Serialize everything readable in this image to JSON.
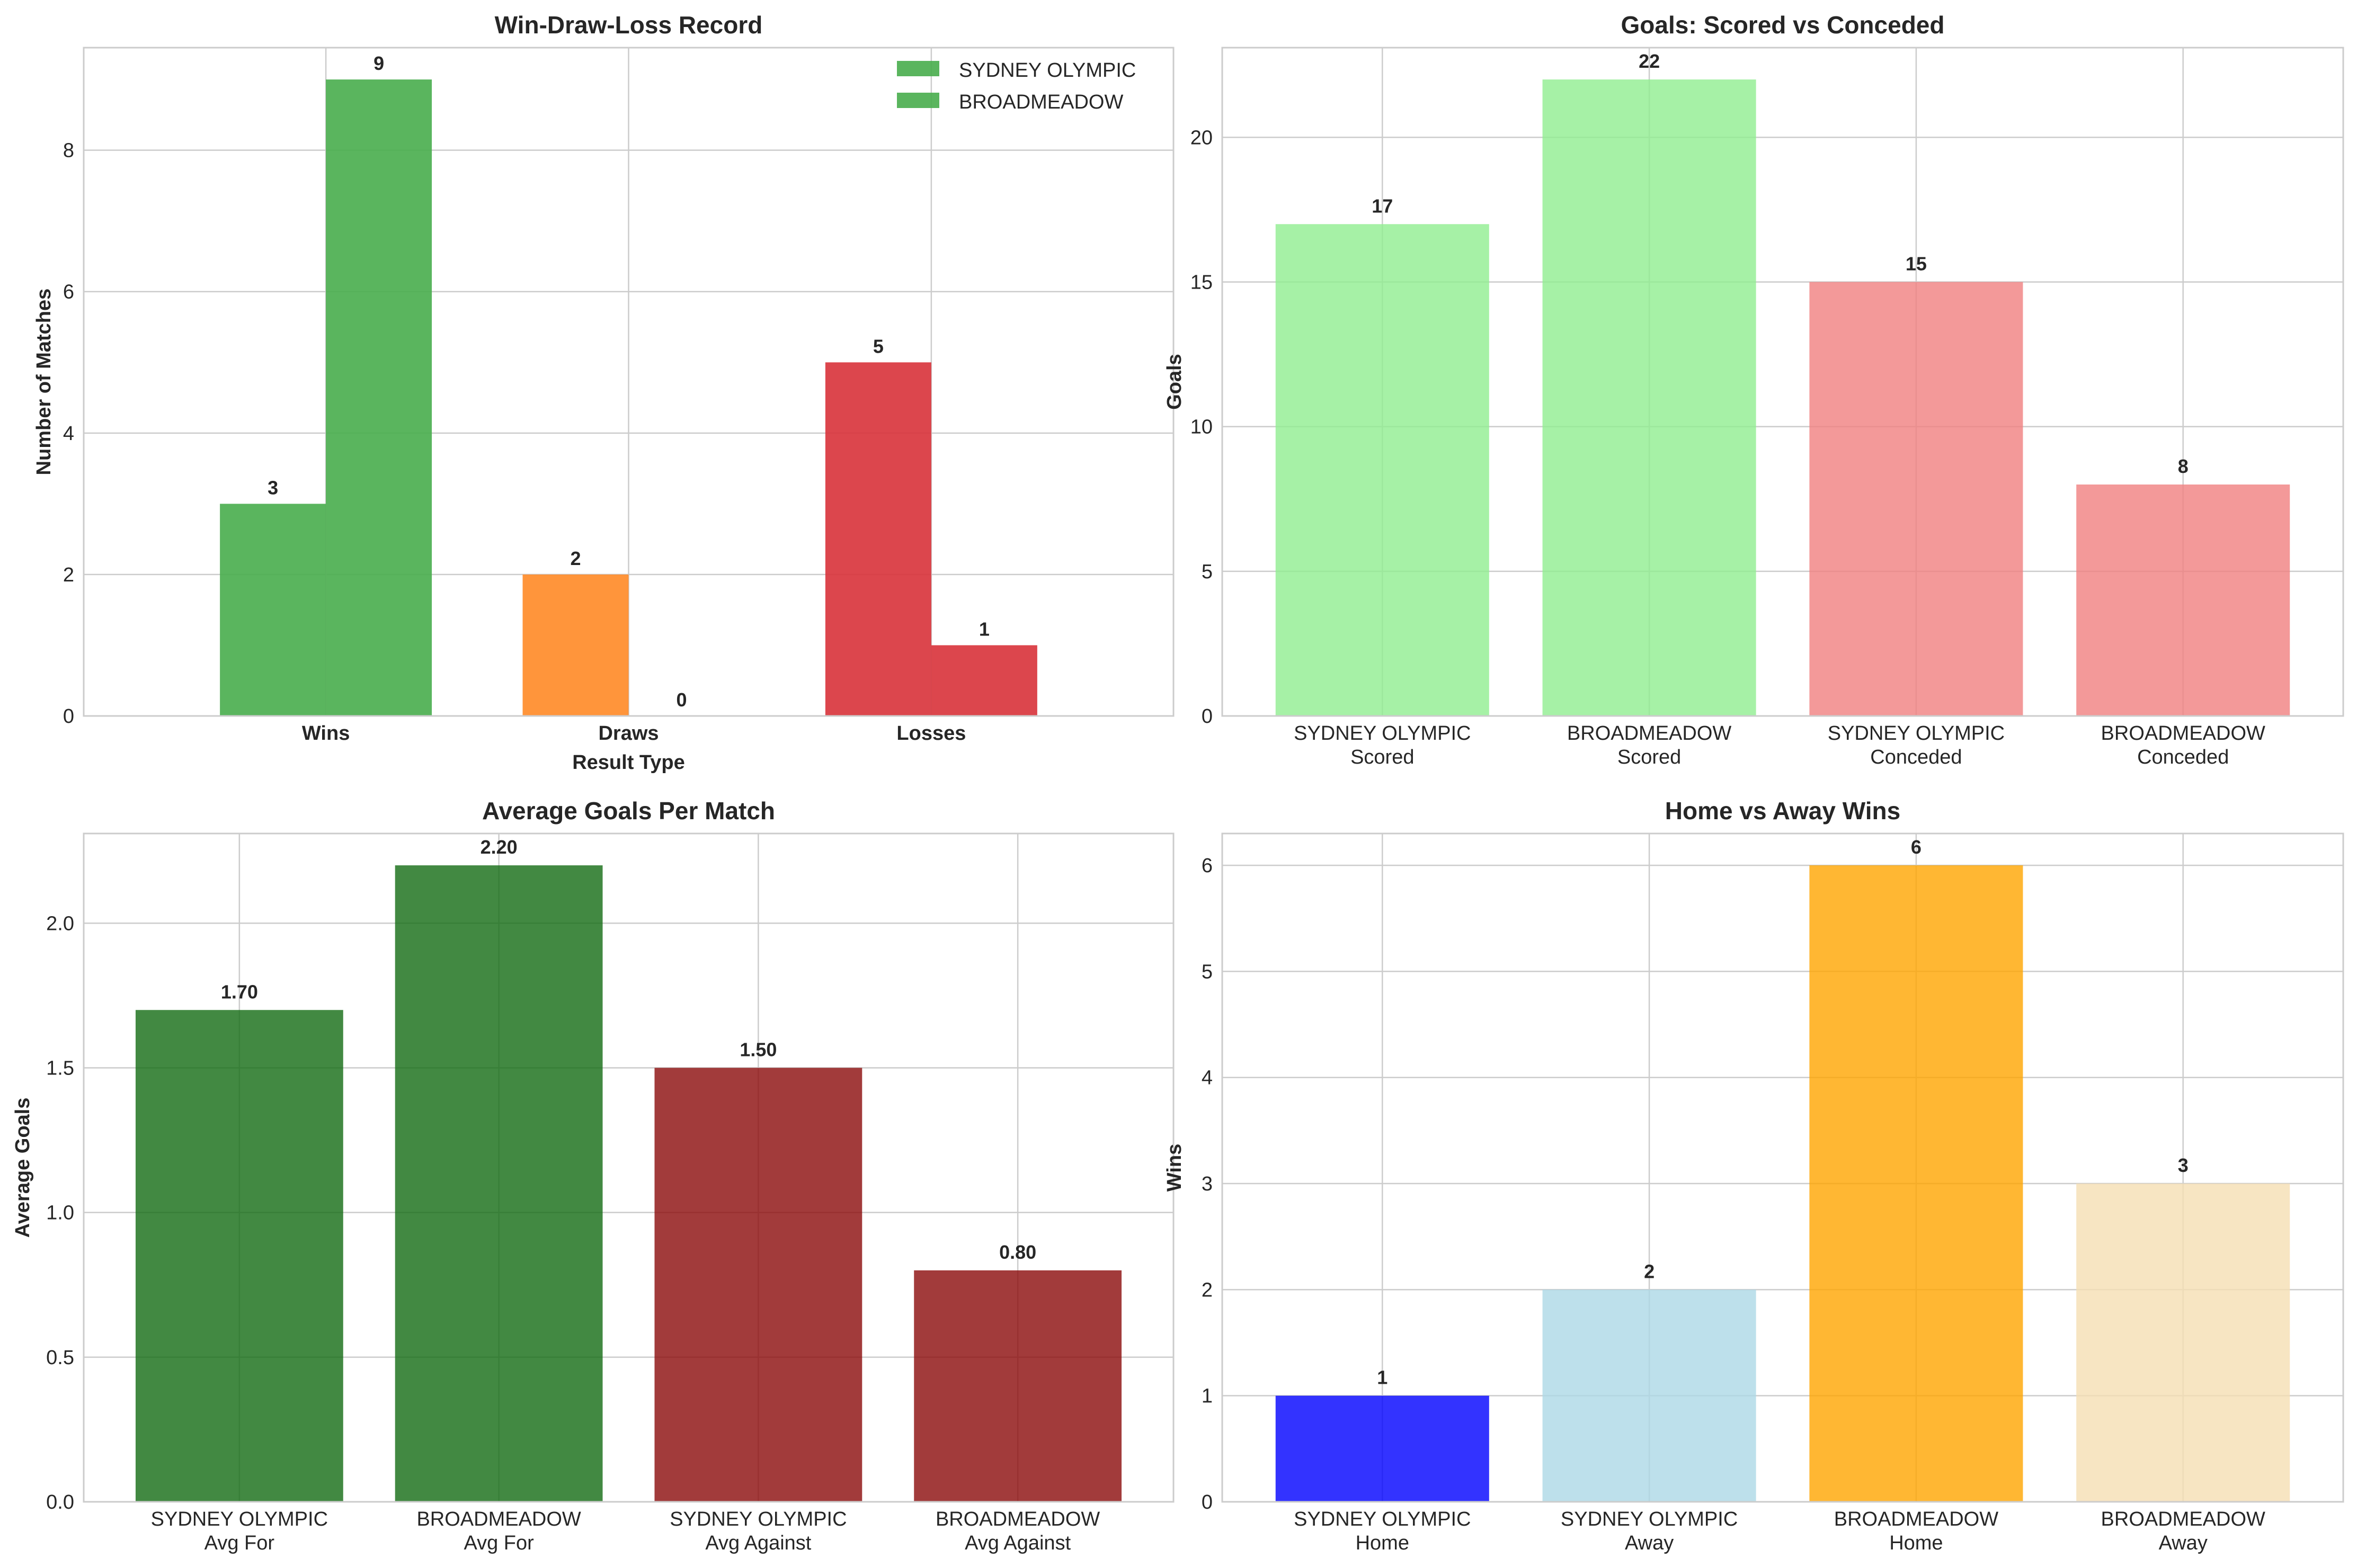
{
  "chart_data": [
    {
      "type": "bar",
      "title": "Win-Draw-Loss Record",
      "xlabel": "Result Type",
      "ylabel": "Number of Matches",
      "categories": [
        "Wins",
        "Draws",
        "Losses"
      ],
      "series": [
        {
          "name": "SYDNEY OLYMPIC",
          "values": [
            3,
            2,
            5
          ]
        },
        {
          "name": "BROADMEADOW",
          "values": [
            9,
            0,
            1
          ]
        }
      ],
      "bar_colors": [
        [
          "#4caf50",
          "#ff8c2a",
          "#d9363e"
        ],
        [
          "#4caf50",
          "#ff8c2a",
          "#d9363e"
        ]
      ],
      "legend_colors": [
        "#4caf50",
        "#4caf50"
      ],
      "ylim": [
        0,
        9.45
      ],
      "yticks": [
        "0",
        "2",
        "4",
        "6",
        "8"
      ],
      "grid": true,
      "legend": "top-right"
    },
    {
      "type": "bar",
      "title": "Goals: Scored vs Conceded",
      "ylabel": "Goals",
      "categories": [
        [
          "SYDNEY OLYMPIC",
          "Scored"
        ],
        [
          "BROADMEADOW",
          "Scored"
        ],
        [
          "SYDNEY OLYMPIC",
          "Conceded"
        ],
        [
          "BROADMEADOW",
          "Conceded"
        ]
      ],
      "values": [
        17,
        22,
        15,
        8
      ],
      "value_labels": [
        "17",
        "22",
        "15",
        "8"
      ],
      "colors": [
        "#90ee90",
        "#90ee90",
        "#f08080",
        "#f08080"
      ],
      "ylim": [
        0,
        23.1
      ],
      "yticks": [
        "0",
        "5",
        "10",
        "15",
        "20"
      ],
      "grid": true
    },
    {
      "type": "bar",
      "title": "Average Goals Per Match",
      "ylabel": "Average Goals",
      "categories": [
        [
          "SYDNEY OLYMPIC",
          "Avg For"
        ],
        [
          "BROADMEADOW",
          "Avg For"
        ],
        [
          "SYDNEY OLYMPIC",
          "Avg Against"
        ],
        [
          "BROADMEADOW",
          "Avg Against"
        ]
      ],
      "values": [
        1.7,
        2.2,
        1.5,
        0.8
      ],
      "value_labels": [
        "1.70",
        "2.20",
        "1.50",
        "0.80"
      ],
      "colors": [
        "#136b13",
        "#136b13",
        "#8b0a0a",
        "#8b0a0a"
      ],
      "ylim": [
        0,
        2.31
      ],
      "yticks": [
        "0.0",
        "0.5",
        "1.0",
        "1.5",
        "2.0"
      ],
      "grid": true
    },
    {
      "type": "bar",
      "title": "Home vs Away Wins",
      "ylabel": "Wins",
      "categories": [
        [
          "SYDNEY OLYMPIC",
          "Home"
        ],
        [
          "SYDNEY OLYMPIC",
          "Away"
        ],
        [
          "BROADMEADOW",
          "Home"
        ],
        [
          "BROADMEADOW",
          "Away"
        ]
      ],
      "values": [
        1,
        2,
        6,
        3
      ],
      "value_labels": [
        "1",
        "2",
        "6",
        "3"
      ],
      "colors": [
        "#0000ff",
        "#add8e6",
        "#ffa500",
        "#f5deb3"
      ],
      "ylim": [
        0,
        6.3
      ],
      "yticks": [
        "0",
        "1",
        "2",
        "3",
        "4",
        "5",
        "6"
      ],
      "grid": true
    }
  ]
}
